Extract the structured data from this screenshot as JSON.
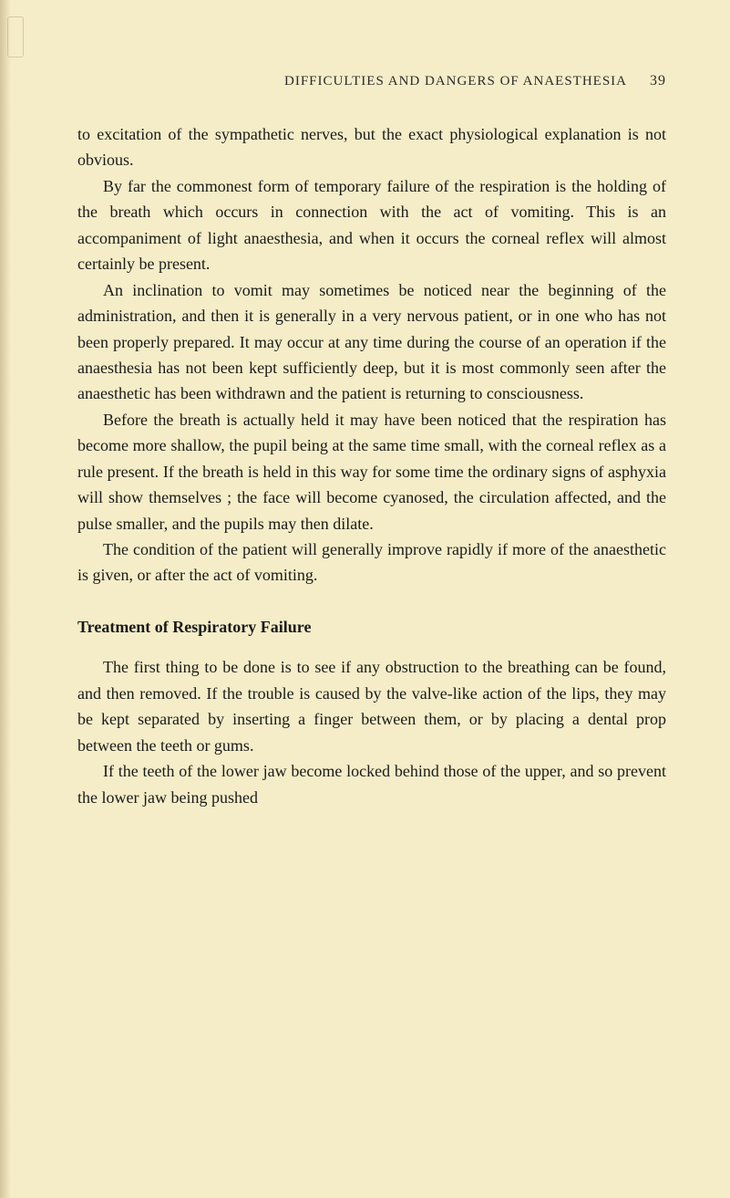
{
  "header": {
    "title": "DIFFICULTIES AND DANGERS OF ANAESTHESIA",
    "page_number": "39"
  },
  "paragraphs": {
    "p1": "to excitation of the sympathetic nerves, but the exact physiological explanation is not obvious.",
    "p2": "By far the commonest form of temporary failure of the respiration is the holding of the breath which occurs in connection with the act of vomiting. This is an accompaniment of light anaesthesia, and when it occurs the corneal reflex will almost certainly be present.",
    "p3": "An inclination to vomit may sometimes be noticed near the beginning of the administration, and then it is generally in a very nervous patient, or in one who has not been properly prepared. It may occur at any time during the course of an operation if the anaesthesia has not been kept sufficiently deep, but it is most commonly seen after the anaesthetic has been withdrawn and the patient is returning to consciousness.",
    "p4": "Before the breath is actually held it may have been noticed that the respiration has become more shallow, the pupil being at the same time small, with the corneal reflex as a rule present. If the breath is held in this way for some time the ordinary signs of asphyxia will show themselves ; the face will become cyanosed, the circulation affected, and the pulse smaller, and the pupils may then dilate.",
    "p5": "The condition of the patient will generally improve rapidly if more of the anaesthetic is given, or after the act of vomiting."
  },
  "section_heading": "Treatment of Respiratory Failure",
  "section_paragraphs": {
    "sp1": "The first thing to be done is to see if any obstruction to the breathing can be found, and then removed. If the trouble is caused by the valve-like action of the lips, they may be kept separated by inserting a finger between them, or by placing a dental prop between the teeth or gums.",
    "sp2": "If the teeth of the lower jaw become locked behind those of the upper, and so prevent the lower jaw being pushed"
  },
  "colors": {
    "background": "#f5edc8",
    "text": "#1a1a1a",
    "header_text": "#2a2a2a"
  },
  "typography": {
    "body_font_size": 18,
    "header_font_size": 15,
    "heading_font_size": 18,
    "line_height": 1.58,
    "font_family": "Georgia, Times New Roman, serif"
  }
}
